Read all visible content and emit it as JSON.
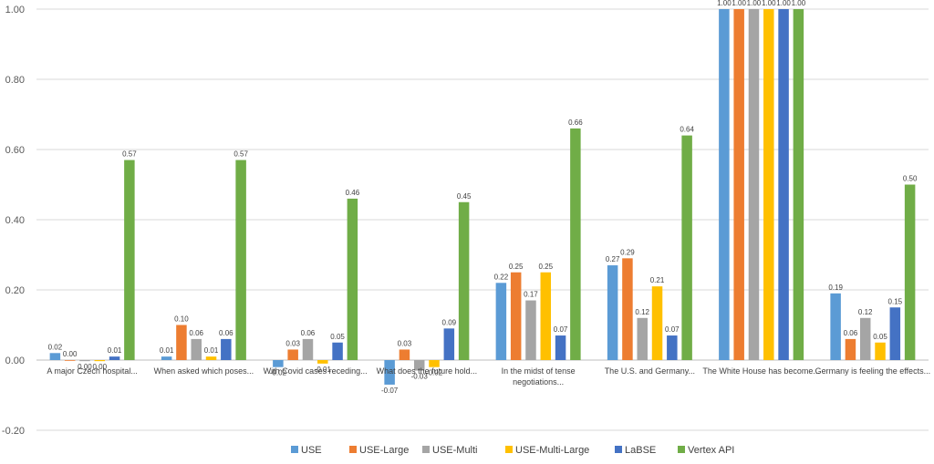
{
  "chart_data": {
    "type": "bar",
    "title": "",
    "xlabel": "",
    "ylabel": "",
    "ylim": [
      -0.2,
      1.0
    ],
    "yticks": [
      "-0.20",
      "0.00",
      "0.20",
      "0.40",
      "0.60",
      "0.80",
      "1.00"
    ],
    "grid": true,
    "legend_position": "bottom",
    "categories": [
      [
        "A major Czech hospital..."
      ],
      [
        "When asked which poses..."
      ],
      [
        "With Covid cases receding..."
      ],
      [
        "What does the future hold..."
      ],
      [
        "In the midst of tense",
        "negotiations..."
      ],
      [
        "The U.S. and Germany..."
      ],
      [
        "The White House has become..."
      ],
      [
        "Germany is feeling the effects..."
      ]
    ],
    "series": [
      {
        "name": "USE",
        "color": "#5B9BD5",
        "values": [
          0.02,
          0.01,
          -0.02,
          -0.07,
          0.22,
          0.27,
          1.0,
          0.19
        ],
        "labels": [
          "0.02",
          "0.01",
          "-0.02",
          "-0.07",
          "0.22",
          "0.27",
          "1.00",
          "0.19"
        ]
      },
      {
        "name": "USE-Large",
        "color": "#ED7D31",
        "values": [
          0.0,
          0.1,
          0.03,
          0.03,
          0.25,
          0.29,
          1.0,
          0.06
        ],
        "labels": [
          "0.00",
          "0.10",
          "0.03",
          "0.03",
          "0.25",
          "0.29",
          "1.00",
          "0.06"
        ]
      },
      {
        "name": "USE-Multi",
        "color": "#A5A5A5",
        "values": [
          -0.003,
          0.06,
          0.06,
          -0.03,
          0.17,
          0.12,
          1.0,
          0.12
        ],
        "labels": [
          "0.00",
          "0.06",
          "0.06",
          "-0.03",
          "0.17",
          "0.12",
          "1.00",
          "0.12"
        ]
      },
      {
        "name": "USE-Multi-Large",
        "color": "#FFC000",
        "values": [
          -0.003,
          0.01,
          -0.01,
          -0.02,
          0.25,
          0.21,
          1.0,
          0.05
        ],
        "labels": [
          "0.00",
          "0.01",
          "-0.01",
          "-0.02",
          "0.25",
          "0.21",
          "1.00",
          "0.05"
        ]
      },
      {
        "name": "LaBSE",
        "color": "#4472C4",
        "values": [
          0.01,
          0.06,
          0.05,
          0.09,
          0.07,
          0.07,
          1.0,
          0.15
        ],
        "labels": [
          "0.01",
          "0.06",
          "0.05",
          "0.09",
          "0.07",
          "0.07",
          "1.00",
          "0.15"
        ]
      },
      {
        "name": "Vertex API",
        "color": "#70AD47",
        "values": [
          0.57,
          0.57,
          0.46,
          0.45,
          0.66,
          0.64,
          1.0,
          0.5
        ],
        "labels": [
          "0.57",
          "0.57",
          "0.46",
          "0.45",
          "0.66",
          "0.64",
          "1.00",
          "0.50"
        ]
      }
    ]
  }
}
